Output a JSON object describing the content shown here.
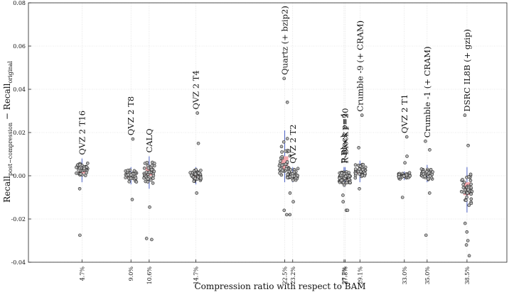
{
  "chart_data": {
    "type": "scatter",
    "title": "",
    "xlabel": "Compression ratio with respect to BAM",
    "ylabel_main": "Recall",
    "ylabel_sub1": "post−compression",
    "ylabel_mid": " − Recall",
    "ylabel_sub2": "original",
    "ylim": [
      -0.04,
      0.08
    ],
    "yticks": [
      -0.04,
      -0.02,
      0.0,
      0.02,
      0.04,
      0.06,
      0.08
    ],
    "ytick_labels": [
      "-0.04",
      "-0.02",
      "0.00",
      "0.02",
      "0.04",
      "0.06",
      "0.08"
    ],
    "grid": true,
    "xlim": [
      0,
      42
    ],
    "box_color": "#f4a8ae",
    "whisker_color": "#4a5fc1",
    "point_fill": "#b5b5b5",
    "series": [
      {
        "name": "QVZ 2 T16",
        "ratio": 4.7,
        "ratio_label": "4.7%",
        "median": 0.003,
        "q1": 0.001,
        "q3": 0.004,
        "whisker_low": -0.003,
        "whisker_high": 0.008,
        "outliers": [
          -0.006,
          -0.0275
        ],
        "n_points": 40
      },
      {
        "name": "QVZ 2 T8",
        "ratio": 9.0,
        "ratio_label": "9.0%",
        "median": 0.0,
        "q1": -0.001,
        "q3": 0.001,
        "whisker_low": -0.004,
        "whisker_high": 0.004,
        "outliers": [
          -0.011,
          0.017
        ],
        "n_points": 40
      },
      {
        "name": "CALQ",
        "ratio": 10.6,
        "ratio_label": "10.6%",
        "median": 0.002,
        "q1": 0.0,
        "q3": 0.004,
        "whisker_low": -0.006,
        "whisker_high": 0.009,
        "outliers": [
          -0.0145,
          -0.029,
          -0.0295
        ],
        "n_points": 40
      },
      {
        "name": "QVZ 2 T4",
        "ratio": 14.7,
        "ratio_label": "14.7%",
        "median": 0.0,
        "q1": -0.001,
        "q3": 0.001,
        "whisker_low": -0.004,
        "whisker_high": 0.004,
        "outliers": [
          -0.008,
          0.015,
          0.029
        ],
        "n_points": 40
      },
      {
        "name": "Quartz (+ bzip2)",
        "ratio": 22.5,
        "ratio_label": "22.5%",
        "median": 0.0055,
        "q1": 0.003,
        "q3": 0.009,
        "whisker_low": -0.003,
        "whisker_high": 0.021,
        "outliers": [
          -0.018,
          -0.016,
          0.034,
          0.045
        ],
        "n_points": 40
      },
      {
        "name": "QVZ 2 T2",
        "ratio": 23.2,
        "ratio_label": "23.2%",
        "median": 0.0,
        "q1": -0.001,
        "q3": 0.001,
        "whisker_low": -0.003,
        "whisker_high": 0.004,
        "outliers": [
          -0.008,
          -0.012,
          -0.018
        ],
        "n_points": 40
      },
      {
        "name": "P-Block p=4",
        "ratio": 27.7,
        "ratio_label": "27.7%",
        "median": -0.001,
        "q1": -0.002,
        "q3": 0.0005,
        "whisker_low": -0.005,
        "whisker_high": 0.004,
        "outliers": [
          -0.009,
          -0.016
        ],
        "n_points": 40
      },
      {
        "name": "R-Block r=20",
        "ratio": 27.8,
        "ratio_label": "27.8%",
        "median": -0.001,
        "q1": -0.002,
        "q3": 0.0005,
        "whisker_low": -0.005,
        "whisker_high": 0.004,
        "outliers": [
          -0.012,
          -0.016
        ],
        "n_points": 40
      },
      {
        "name": "Crumble -9 (+ CRAM)",
        "ratio": 29.1,
        "ratio_label": "29.1%",
        "median": 0.002,
        "q1": 0.001,
        "q3": 0.003,
        "whisker_low": -0.003,
        "whisker_high": 0.007,
        "outliers": [
          -0.006,
          0.013,
          0.028
        ],
        "n_points": 40
      },
      {
        "name": "QVZ 2 T1",
        "ratio": 33.0,
        "ratio_label": "33.0%",
        "median": 0.0,
        "q1": -0.0005,
        "q3": 0.0005,
        "whisker_low": -0.002,
        "whisker_high": 0.002,
        "outliers": [
          -0.01,
          0.006,
          0.009,
          0.018
        ],
        "n_points": 40
      },
      {
        "name": "Crumble -1 (+ CRAM)",
        "ratio": 35.0,
        "ratio_label": "35.0%",
        "median": 0.001,
        "q1": 0.0,
        "q3": 0.002,
        "whisker_low": -0.003,
        "whisker_high": 0.005,
        "outliers": [
          -0.008,
          0.012,
          0.016,
          -0.0275
        ],
        "n_points": 40
      },
      {
        "name": "DSRC IL8B (+ gzip)",
        "ratio": 38.5,
        "ratio_label": "38.5%",
        "median": -0.006,
        "q1": -0.009,
        "q3": -0.003,
        "whisker_low": -0.017,
        "whisker_high": 0.004,
        "outliers": [
          -0.022,
          -0.026,
          -0.03,
          -0.032,
          -0.037,
          0.014,
          0.028
        ],
        "n_points": 40
      }
    ]
  }
}
